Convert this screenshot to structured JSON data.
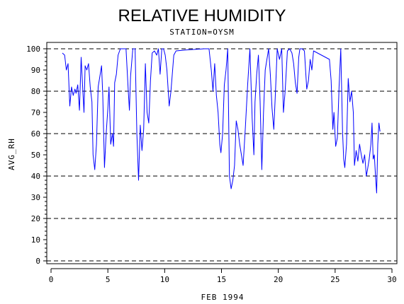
{
  "chart_data": {
    "type": "line",
    "title": "RELATIVE HUMIDITY",
    "subtitle": "STATION=OYSM",
    "xlabel": "FEB 1994",
    "ylabel": "AVG_RH",
    "xlim": [
      0,
      30
    ],
    "ylim": [
      0,
      100
    ],
    "x_ticks": [
      0,
      5,
      10,
      15,
      20,
      25,
      30
    ],
    "y_ticks": [
      0,
      10,
      20,
      30,
      40,
      50,
      60,
      70,
      80,
      90,
      100
    ],
    "y_gridlines": [
      0,
      20,
      40,
      60,
      80,
      100
    ],
    "grid": "dashed horizontal at 0, 20, 40, 60, 80, 100",
    "series": [
      {
        "color": "#0000ff",
        "points": [
          [
            1.0,
            98
          ],
          [
            1.2,
            97
          ],
          [
            1.35,
            90
          ],
          [
            1.5,
            93
          ],
          [
            1.65,
            73
          ],
          [
            1.8,
            82
          ],
          [
            1.95,
            78
          ],
          [
            2.1,
            81
          ],
          [
            2.2,
            79
          ],
          [
            2.35,
            83
          ],
          [
            2.5,
            71
          ],
          [
            2.65,
            96
          ],
          [
            2.8,
            80
          ],
          [
            2.9,
            70
          ],
          [
            3.0,
            92
          ],
          [
            3.15,
            90
          ],
          [
            3.3,
            93
          ],
          [
            3.45,
            82
          ],
          [
            3.6,
            75
          ],
          [
            3.7,
            50
          ],
          [
            3.85,
            43
          ],
          [
            4.0,
            55
          ],
          [
            4.15,
            82
          ],
          [
            4.3,
            87
          ],
          [
            4.45,
            92
          ],
          [
            4.55,
            78
          ],
          [
            4.7,
            44
          ],
          [
            4.85,
            60
          ],
          [
            5.0,
            72
          ],
          [
            5.1,
            82
          ],
          [
            5.25,
            55
          ],
          [
            5.4,
            60
          ],
          [
            5.5,
            54
          ],
          [
            5.6,
            84
          ],
          [
            5.75,
            88
          ],
          [
            5.9,
            97
          ],
          [
            6.1,
            100
          ],
          [
            6.4,
            100
          ],
          [
            6.6,
            100
          ],
          [
            6.8,
            80
          ],
          [
            6.9,
            71
          ],
          [
            7.0,
            87
          ],
          [
            7.2,
            100
          ],
          [
            7.4,
            100
          ],
          [
            7.55,
            60
          ],
          [
            7.7,
            38
          ],
          [
            7.85,
            64
          ],
          [
            8.0,
            52
          ],
          [
            8.15,
            62
          ],
          [
            8.3,
            93
          ],
          [
            8.45,
            70
          ],
          [
            8.6,
            65
          ],
          [
            8.75,
            85
          ],
          [
            8.9,
            98
          ],
          [
            9.1,
            99
          ],
          [
            9.3,
            97
          ],
          [
            9.45,
            100
          ],
          [
            9.6,
            88
          ],
          [
            9.75,
            100
          ],
          [
            9.9,
            100
          ],
          [
            10.05,
            97
          ],
          [
            10.2,
            90
          ],
          [
            10.4,
            73
          ],
          [
            10.55,
            80
          ],
          [
            10.8,
            97
          ],
          [
            11.0,
            99
          ],
          [
            12.0,
            99.5
          ],
          [
            13.5,
            100
          ],
          [
            13.9,
            100
          ],
          [
            14.1,
            90
          ],
          [
            14.25,
            80
          ],
          [
            14.4,
            93
          ],
          [
            14.55,
            78
          ],
          [
            14.7,
            70
          ],
          [
            14.85,
            55
          ],
          [
            14.95,
            51
          ],
          [
            15.1,
            60
          ],
          [
            15.25,
            83
          ],
          [
            15.4,
            90
          ],
          [
            15.55,
            100
          ],
          [
            15.7,
            40
          ],
          [
            15.85,
            34
          ],
          [
            16.0,
            38
          ],
          [
            16.15,
            45
          ],
          [
            16.3,
            66
          ],
          [
            16.45,
            62
          ],
          [
            16.6,
            55
          ],
          [
            16.75,
            50
          ],
          [
            16.9,
            45
          ],
          [
            17.1,
            63
          ],
          [
            17.3,
            83
          ],
          [
            17.5,
            100
          ],
          [
            17.7,
            67
          ],
          [
            17.85,
            50
          ],
          [
            17.95,
            75
          ],
          [
            18.1,
            88
          ],
          [
            18.25,
            97
          ],
          [
            18.4,
            75
          ],
          [
            18.55,
            43
          ],
          [
            18.7,
            70
          ],
          [
            18.85,
            90
          ],
          [
            19.0,
            95
          ],
          [
            19.15,
            100
          ],
          [
            19.3,
            88
          ],
          [
            19.45,
            72
          ],
          [
            19.6,
            62
          ],
          [
            19.75,
            80
          ],
          [
            19.9,
            100
          ],
          [
            20.1,
            95
          ],
          [
            20.3,
            100
          ],
          [
            20.45,
            70
          ],
          [
            20.6,
            80
          ],
          [
            20.8,
            99
          ],
          [
            21.0,
            100
          ],
          [
            21.2,
            98
          ],
          [
            21.35,
            93
          ],
          [
            21.5,
            84
          ],
          [
            21.65,
            79
          ],
          [
            21.8,
            96
          ],
          [
            21.9,
            100
          ],
          [
            22.1,
            100
          ],
          [
            22.3,
            99
          ],
          [
            22.5,
            81
          ],
          [
            22.65,
            85
          ],
          [
            22.8,
            95
          ],
          [
            22.95,
            90
          ],
          [
            23.1,
            99
          ],
          [
            24.5,
            95
          ],
          [
            24.65,
            85
          ],
          [
            24.8,
            62
          ],
          [
            24.9,
            70
          ],
          [
            25.05,
            54
          ],
          [
            25.2,
            58
          ],
          [
            25.35,
            82
          ],
          [
            25.5,
            100
          ],
          [
            25.65,
            61
          ],
          [
            25.75,
            48
          ],
          [
            25.85,
            44
          ],
          [
            26.0,
            55
          ],
          [
            26.15,
            86
          ],
          [
            26.3,
            75
          ],
          [
            26.45,
            80
          ],
          [
            26.6,
            70
          ],
          [
            26.7,
            45
          ],
          [
            26.85,
            52
          ],
          [
            27.0,
            47
          ],
          [
            27.15,
            55
          ],
          [
            27.3,
            50
          ],
          [
            27.45,
            46
          ],
          [
            27.6,
            50
          ],
          [
            27.75,
            40
          ],
          [
            27.85,
            43
          ],
          [
            28.0,
            48
          ],
          [
            28.15,
            55
          ],
          [
            28.25,
            65
          ],
          [
            28.35,
            48
          ],
          [
            28.45,
            50
          ],
          [
            28.55,
            40
          ],
          [
            28.65,
            32
          ],
          [
            28.75,
            55
          ],
          [
            28.85,
            65
          ],
          [
            28.95,
            61
          ]
        ]
      }
    ]
  }
}
